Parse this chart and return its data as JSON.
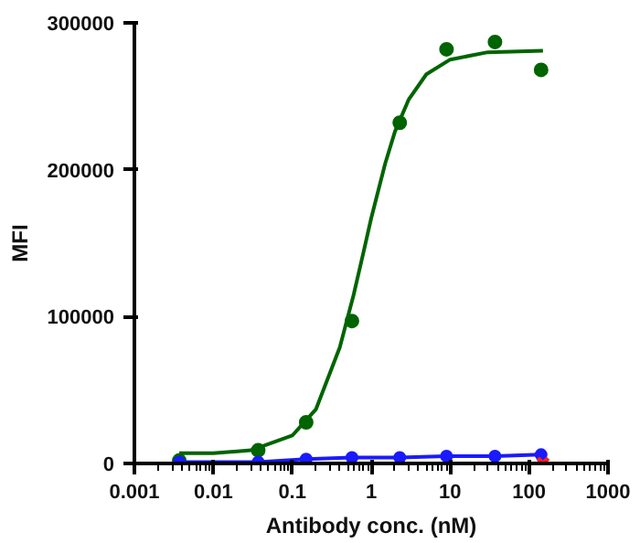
{
  "chart_data": {
    "type": "scatter",
    "xlabel": "Antibody conc. (nM)",
    "ylabel": "MFI",
    "log": "x",
    "xlim": [
      0.001,
      1000
    ],
    "xticks": [
      0.001,
      0.01,
      0.1,
      1,
      10,
      100,
      1000
    ],
    "ylim": [
      0,
      300000
    ],
    "yticks": [
      0,
      100000,
      200000,
      300000
    ],
    "grid": false,
    "series": [
      {
        "marker": "circle",
        "color": "#006400",
        "x": [
          0.0037,
          0.037,
          0.15,
          0.57,
          2.3,
          9,
          37,
          142
        ],
        "values": [
          2000,
          9000,
          28000,
          97000,
          232000,
          282000,
          287000,
          268000
        ]
      },
      {
        "type": "line",
        "marker": "none",
        "color": "#006400",
        "x": [
          0.0037,
          0.01,
          0.03,
          0.1,
          0.2,
          0.4,
          0.6,
          0.8,
          1,
          1.5,
          2,
          3,
          5,
          10,
          30,
          150
        ],
        "values": [
          7000,
          7000,
          9000,
          19000,
          37000,
          79000,
          115000,
          144000,
          167000,
          204000,
          226000,
          248000,
          265000,
          275000,
          280000,
          281000
        ]
      },
      {
        "type": "line",
        "marker": "circle",
        "color": "#1a1aff",
        "x": [
          0.0037,
          0.037,
          0.15,
          0.57,
          2.3,
          9,
          37,
          142
        ],
        "values": [
          1000,
          1000,
          3000,
          4000,
          4000,
          5000,
          5000,
          6000
        ]
      },
      {
        "type": "scatter",
        "marker": "cross",
        "color": "#ff2020",
        "x": [
          150
        ],
        "values": [
          0
        ]
      }
    ]
  }
}
